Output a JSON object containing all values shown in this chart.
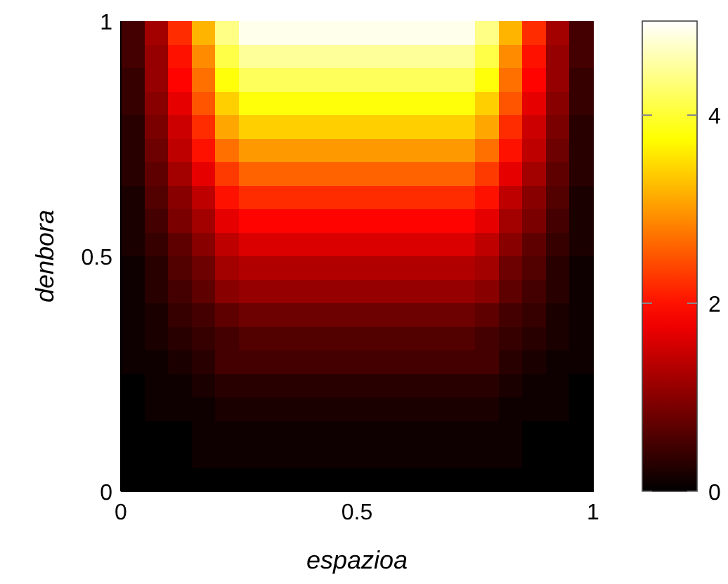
{
  "chart_data": {
    "type": "heatmap",
    "xlabel": "espazioa",
    "ylabel": "denbora",
    "x": [
      0.025,
      0.075,
      0.125,
      0.175,
      0.225,
      0.275,
      0.325,
      0.375,
      0.425,
      0.475,
      0.525,
      0.575,
      0.625,
      0.675,
      0.725,
      0.775,
      0.825,
      0.875,
      0.925,
      0.975
    ],
    "y": [
      0.975,
      0.925,
      0.875,
      0.825,
      0.775,
      0.725,
      0.675,
      0.625,
      0.575,
      0.525,
      0.475,
      0.425,
      0.375,
      0.325,
      0.275,
      0.225,
      0.175,
      0.125,
      0.075,
      0.025
    ],
    "xlim": [
      0,
      1
    ],
    "xticks": [
      0,
      0.5,
      1
    ],
    "ylim": [
      0,
      1
    ],
    "yticks": [
      0,
      0.5,
      1
    ],
    "clim": [
      0,
      5
    ],
    "cticks": [
      0,
      2,
      4
    ],
    "cells": [
      [
        0.5,
        1.2,
        2.2,
        3.2,
        4.4,
        4.9,
        4.9,
        4.9,
        4.9,
        4.9,
        4.9,
        4.9,
        4.9,
        4.9,
        4.9,
        4.4,
        3.2,
        2.2,
        1.2,
        0.5
      ],
      [
        0.5,
        1.1,
        2.0,
        2.9,
        4.1,
        4.5,
        4.5,
        4.5,
        4.5,
        4.5,
        4.5,
        4.5,
        4.5,
        4.5,
        4.5,
        4.1,
        2.9,
        2.0,
        1.1,
        0.5
      ],
      [
        0.4,
        1.1,
        1.9,
        2.7,
        3.8,
        4.2,
        4.2,
        4.2,
        4.2,
        4.2,
        4.2,
        4.2,
        4.2,
        4.2,
        4.2,
        3.8,
        2.7,
        1.9,
        1.1,
        0.4
      ],
      [
        0.4,
        1.0,
        1.7,
        2.5,
        3.4,
        3.8,
        3.8,
        3.8,
        3.8,
        3.8,
        3.8,
        3.8,
        3.8,
        3.8,
        3.8,
        3.4,
        2.5,
        1.7,
        1.0,
        0.4
      ],
      [
        0.3,
        0.9,
        1.5,
        2.2,
        3.1,
        3.4,
        3.4,
        3.4,
        3.4,
        3.4,
        3.4,
        3.4,
        3.4,
        3.4,
        3.4,
        3.1,
        2.2,
        1.5,
        0.9,
        0.3
      ],
      [
        0.3,
        0.8,
        1.4,
        2.0,
        2.7,
        3.0,
        3.0,
        3.0,
        3.0,
        3.0,
        3.0,
        3.0,
        3.0,
        3.0,
        3.0,
        2.7,
        2.0,
        1.4,
        0.8,
        0.3
      ],
      [
        0.3,
        0.7,
        1.2,
        1.7,
        2.3,
        2.6,
        2.6,
        2.6,
        2.6,
        2.6,
        2.6,
        2.6,
        2.6,
        2.6,
        2.6,
        2.3,
        1.7,
        1.2,
        0.7,
        0.3
      ],
      [
        0.2,
        0.6,
        1.0,
        1.4,
        2.0,
        2.2,
        2.2,
        2.2,
        2.2,
        2.2,
        2.2,
        2.2,
        2.2,
        2.2,
        2.2,
        2.0,
        1.4,
        1.0,
        0.6,
        0.2
      ],
      [
        0.2,
        0.5,
        0.9,
        1.2,
        1.7,
        1.9,
        1.9,
        1.9,
        1.9,
        1.9,
        1.9,
        1.9,
        1.9,
        1.9,
        1.9,
        1.7,
        1.2,
        0.9,
        0.5,
        0.2
      ],
      [
        0.2,
        0.4,
        0.7,
        1.0,
        1.4,
        1.6,
        1.6,
        1.6,
        1.6,
        1.6,
        1.6,
        1.6,
        1.6,
        1.6,
        1.6,
        1.4,
        1.0,
        0.7,
        0.4,
        0.2
      ],
      [
        0.1,
        0.3,
        0.6,
        0.8,
        1.2,
        1.3,
        1.3,
        1.3,
        1.3,
        1.3,
        1.3,
        1.3,
        1.3,
        1.3,
        1.3,
        1.2,
        0.8,
        0.6,
        0.3,
        0.1
      ],
      [
        0.1,
        0.3,
        0.5,
        0.7,
        1.0,
        1.1,
        1.1,
        1.1,
        1.1,
        1.1,
        1.1,
        1.1,
        1.1,
        1.1,
        1.1,
        1.0,
        0.7,
        0.5,
        0.3,
        0.1
      ],
      [
        0.1,
        0.2,
        0.4,
        0.5,
        0.7,
        0.8,
        0.8,
        0.8,
        0.8,
        0.8,
        0.8,
        0.8,
        0.8,
        0.8,
        0.8,
        0.7,
        0.5,
        0.4,
        0.2,
        0.1
      ],
      [
        0.1,
        0.2,
        0.3,
        0.4,
        0.5,
        0.6,
        0.6,
        0.6,
        0.6,
        0.6,
        0.6,
        0.6,
        0.6,
        0.6,
        0.6,
        0.5,
        0.4,
        0.3,
        0.2,
        0.1
      ],
      [
        0.1,
        0.1,
        0.2,
        0.3,
        0.5,
        0.5,
        0.5,
        0.5,
        0.5,
        0.5,
        0.5,
        0.5,
        0.5,
        0.5,
        0.5,
        0.5,
        0.3,
        0.2,
        0.1,
        0.1
      ],
      [
        0,
        0.1,
        0.1,
        0.2,
        0.3,
        0.3,
        0.3,
        0.3,
        0.3,
        0.3,
        0.3,
        0.3,
        0.3,
        0.3,
        0.3,
        0.3,
        0.2,
        0.1,
        0.1,
        0
      ],
      [
        0,
        0.1,
        0.1,
        0.1,
        0.2,
        0.2,
        0.2,
        0.2,
        0.2,
        0.2,
        0.2,
        0.2,
        0.2,
        0.2,
        0.2,
        0.2,
        0.1,
        0.1,
        0.1,
        0
      ],
      [
        0,
        0,
        0,
        0.1,
        0.1,
        0.1,
        0.1,
        0.1,
        0.1,
        0.1,
        0.1,
        0.1,
        0.1,
        0.1,
        0.1,
        0.1,
        0.1,
        0,
        0,
        0
      ],
      [
        0,
        0,
        0,
        0.1,
        0.1,
        0.1,
        0.1,
        0.1,
        0.1,
        0.1,
        0.1,
        0.1,
        0.1,
        0.1,
        0.1,
        0.1,
        0.1,
        0,
        0,
        0
      ],
      [
        0,
        0,
        0,
        0,
        0,
        0,
        0,
        0,
        0,
        0,
        0,
        0,
        0,
        0,
        0,
        0,
        0,
        0,
        0,
        0
      ]
    ]
  }
}
